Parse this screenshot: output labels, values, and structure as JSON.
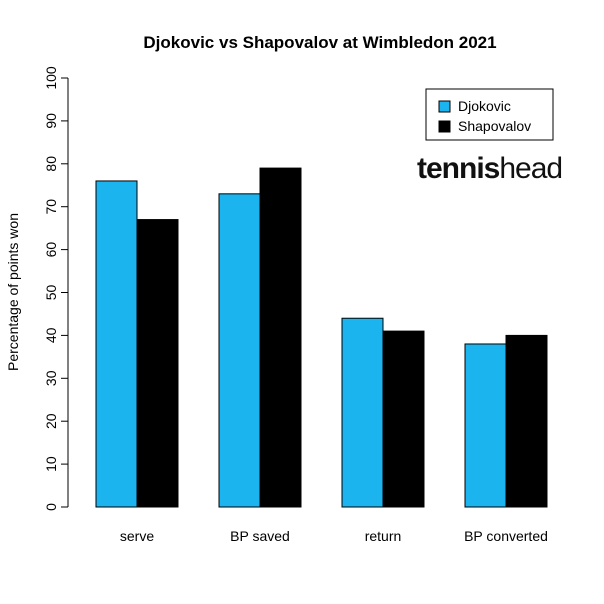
{
  "chart_data": {
    "type": "bar",
    "title": "Djokovic vs Shapovalov at Wimbledon 2021",
    "xlabel": "",
    "ylabel": "Percentage of points won",
    "categories": [
      "serve",
      "BP saved",
      "return",
      "BP converted"
    ],
    "series": [
      {
        "name": "Djokovic",
        "values": [
          76,
          73,
          44,
          38
        ],
        "color": "#1cb4ef"
      },
      {
        "name": "Shapovalov",
        "values": [
          67,
          79,
          41,
          40
        ],
        "color": "#000000"
      }
    ],
    "ylim": [
      0,
      100
    ],
    "yticks": [
      0,
      10,
      20,
      30,
      40,
      50,
      60,
      70,
      80,
      90,
      100
    ],
    "grid": false,
    "legend_position": "top-right"
  },
  "logo": {
    "part1": "tennis",
    "part2": "head"
  }
}
